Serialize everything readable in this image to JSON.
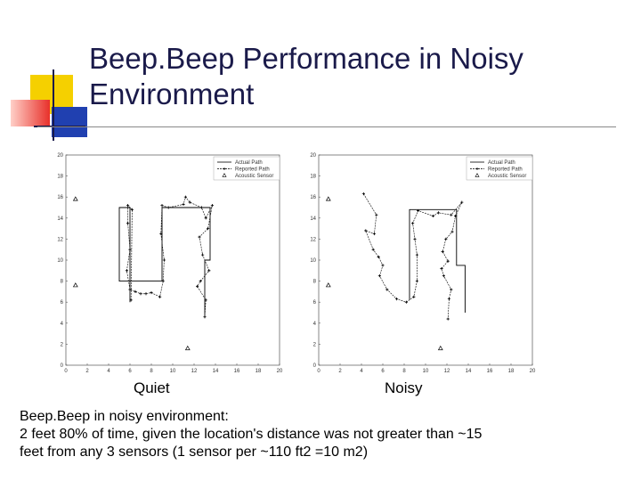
{
  "slide": {
    "title_line1": "Beep.Beep Performance in Noisy",
    "title_line2": "Environment",
    "body_line1": "Beep.Beep in noisy environment:",
    "body_line2": "2 feet 80% of time, given the location's distance was not greater than ~15",
    "body_line3": "feet from any 3 sensors (1 sensor per ~110 ft2 =10 m2)",
    "colors": {
      "yellow": "#f5d000",
      "red": "#e8302a",
      "blue": "#2040b0",
      "navy": "#1a1a4a"
    }
  },
  "chart_data": [
    {
      "type": "line",
      "caption": "Quiet",
      "xlim": [
        0,
        20
      ],
      "ylim": [
        0,
        20
      ],
      "xticks": [
        "0",
        "2",
        "4",
        "6",
        "8",
        "10",
        "12",
        "14",
        "16",
        "18",
        "20"
      ],
      "yticks": [
        "0",
        "2",
        "4",
        "6",
        "8",
        "10",
        "12",
        "14",
        "16",
        "18",
        "20"
      ],
      "legend": [
        "Actual Path",
        "Reported Path",
        "Acoustic Sensor"
      ],
      "legend_position": "top-right",
      "series": [
        {
          "name": "Actual Path",
          "points": [
            [
              6,
              6
            ],
            [
              6,
              15
            ],
            [
              5,
              15
            ],
            [
              5,
              8
            ],
            [
              9,
              8
            ],
            [
              9,
              15
            ],
            [
              13.5,
              15
            ],
            [
              13.5,
              10
            ],
            [
              13,
              10
            ],
            [
              13,
              4.5
            ]
          ]
        },
        {
          "name": "Reported Path",
          "points": [
            [
              6.1,
              6.2
            ],
            [
              6.2,
              14.8
            ],
            [
              5.8,
              15.2
            ],
            [
              5.8,
              13.5
            ],
            [
              6,
              11
            ],
            [
              5.7,
              9
            ],
            [
              6,
              7.2
            ],
            [
              6.5,
              7
            ],
            [
              7,
              6.8
            ],
            [
              7.5,
              6.8
            ],
            [
              8,
              6.9
            ],
            [
              8.8,
              6.5
            ],
            [
              9.1,
              8
            ],
            [
              9.2,
              10
            ],
            [
              8.9,
              12.5
            ],
            [
              9,
              15.2
            ],
            [
              9.6,
              15
            ],
            [
              11,
              15.3
            ],
            [
              11.2,
              16
            ],
            [
              11.6,
              15.5
            ],
            [
              12.7,
              15
            ],
            [
              13.1,
              14
            ],
            [
              13.7,
              15.2
            ],
            [
              13.3,
              13
            ],
            [
              12.5,
              12.2
            ],
            [
              12.8,
              10.5
            ],
            [
              13.4,
              9
            ],
            [
              12.6,
              8
            ],
            [
              12.3,
              7.5
            ],
            [
              13.1,
              6.2
            ],
            [
              13,
              4.6
            ]
          ]
        },
        {
          "name": "Acoustic Sensor",
          "points": [
            [
              0.9,
              15.8
            ],
            [
              0.9,
              7.6
            ],
            [
              11.4,
              1.6
            ]
          ]
        }
      ]
    },
    {
      "type": "line",
      "caption": "Noisy",
      "xlim": [
        0,
        20
      ],
      "ylim": [
        0,
        20
      ],
      "xticks": [
        "0",
        "2",
        "4",
        "6",
        "8",
        "10",
        "12",
        "14",
        "16",
        "18",
        "20"
      ],
      "yticks": [
        "0",
        "2",
        "4",
        "6",
        "8",
        "10",
        "12",
        "14",
        "16",
        "18",
        "20"
      ],
      "legend": [
        "Actual Path",
        "Reported Path",
        "Acoustic Sensor"
      ],
      "legend_position": "top-right",
      "series": [
        {
          "name": "Actual Path",
          "points": [
            [
              8.5,
              6.2
            ],
            [
              8.5,
              14.8
            ],
            [
              12.9,
              14.8
            ],
            [
              12.9,
              9.5
            ],
            [
              13.7,
              9.5
            ],
            [
              13.7,
              5
            ]
          ]
        },
        {
          "name": "Reported Path",
          "points": [
            [
              4.2,
              16.3
            ],
            [
              5.4,
              14.3
            ],
            [
              5.2,
              12.5
            ],
            [
              4.4,
              12.8
            ],
            [
              5.1,
              11
            ],
            [
              5.6,
              10.3
            ],
            [
              6,
              9.5
            ],
            [
              5.7,
              8.5
            ],
            [
              6.4,
              7.2
            ],
            [
              7.3,
              6.3
            ],
            [
              8.2,
              6
            ],
            [
              8.9,
              6.5
            ],
            [
              9.2,
              8
            ],
            [
              9.2,
              10.5
            ],
            [
              9,
              12
            ],
            [
              8.8,
              13.5
            ],
            [
              9.3,
              14.7
            ],
            [
              10.7,
              14.2
            ],
            [
              11.2,
              14.5
            ],
            [
              12.4,
              14.3
            ],
            [
              13.4,
              15.5
            ],
            [
              12.8,
              14.2
            ],
            [
              12.5,
              12.7
            ],
            [
              11.9,
              12
            ],
            [
              11.6,
              10.8
            ],
            [
              12.1,
              9.9
            ],
            [
              11.5,
              9.2
            ],
            [
              11.7,
              8.5
            ],
            [
              12.4,
              7.2
            ],
            [
              12.2,
              6.3
            ],
            [
              12.1,
              4.4
            ]
          ]
        },
        {
          "name": "Acoustic Sensor",
          "points": [
            [
              0.9,
              15.8
            ],
            [
              0.9,
              7.6
            ],
            [
              11.4,
              1.6
            ]
          ]
        }
      ]
    }
  ],
  "icons": {
    "sensor_marker": "triangle-icon",
    "reported_marker": "cross-icon"
  }
}
